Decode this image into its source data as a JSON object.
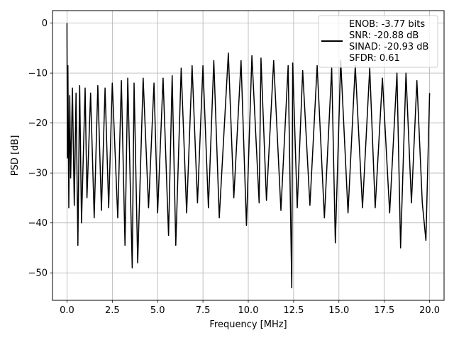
{
  "chart_data": {
    "type": "line",
    "title": "",
    "xlabel": "Frequency [MHz]",
    "ylabel": "PSD [dB]",
    "xlim": [
      -0.8,
      20.8
    ],
    "ylim": [
      -55.5,
      2.5
    ],
    "xticks": [
      0.0,
      2.5,
      5.0,
      7.5,
      10.0,
      12.5,
      15.0,
      17.5,
      20.0
    ],
    "xtick_labels": [
      "0.0",
      "2.5",
      "5.0",
      "7.5",
      "10.0",
      "12.5",
      "15.0",
      "17.5",
      "20.0"
    ],
    "yticks": [
      0,
      -10,
      -20,
      -30,
      -40,
      -50
    ],
    "ytick_labels": [
      "0",
      "−10",
      "−20",
      "−30",
      "−40",
      "−50"
    ],
    "grid": true,
    "legend_position": "top-right",
    "legend": [
      "ENOB: -3.77 bits",
      "SNR: -20.88 dB",
      "SINAD: -20.93 dB",
      "SFDR: 0.61"
    ],
    "series": [
      {
        "color": "#000000",
        "x": [
          0.0,
          0.02,
          0.05,
          0.1,
          0.15,
          0.2,
          0.3,
          0.4,
          0.5,
          0.6,
          0.7,
          0.8,
          1.0,
          1.1,
          1.3,
          1.5,
          1.7,
          1.9,
          2.1,
          2.3,
          2.5,
          2.8,
          3.0,
          3.2,
          3.35,
          3.6,
          3.7,
          3.9,
          4.2,
          4.5,
          4.8,
          5.0,
          5.3,
          5.6,
          5.8,
          6.0,
          6.3,
          6.6,
          6.9,
          7.2,
          7.5,
          7.8,
          8.1,
          8.4,
          8.9,
          9.2,
          9.6,
          9.9,
          10.2,
          10.6,
          10.7,
          11.0,
          11.4,
          11.8,
          12.2,
          12.4,
          12.45,
          12.7,
          13.0,
          13.4,
          13.8,
          14.2,
          14.6,
          14.8,
          15.1,
          15.5,
          15.9,
          16.3,
          16.7,
          17.0,
          17.4,
          17.8,
          18.2,
          18.4,
          18.7,
          19.0,
          19.3,
          19.6,
          19.8,
          20.0
        ],
        "y": [
          0.0,
          -27.0,
          -8.5,
          -37.0,
          -14.5,
          -31.0,
          -13.0,
          -36.5,
          -14.0,
          -44.5,
          -12.5,
          -40.0,
          -13.0,
          -35.0,
          -14.0,
          -39.0,
          -12.5,
          -37.5,
          -13.0,
          -37.0,
          -12.0,
          -39.0,
          -11.5,
          -44.5,
          -11.0,
          -49.0,
          -12.0,
          -48.0,
          -11.0,
          -37.0,
          -12.0,
          -38.0,
          -11.0,
          -42.5,
          -10.5,
          -44.5,
          -9.0,
          -38.0,
          -8.5,
          -36.0,
          -8.5,
          -37.0,
          -7.5,
          -39.0,
          -6.0,
          -35.0,
          -7.5,
          -40.5,
          -6.5,
          -36.0,
          -7.0,
          -35.5,
          -7.5,
          -37.5,
          -8.5,
          -53.0,
          -8.0,
          -37.0,
          -9.5,
          -36.5,
          -8.5,
          -39.0,
          -9.0,
          -44.0,
          -7.5,
          -38.0,
          -8.5,
          -37.0,
          -9.0,
          -37.0,
          -11.0,
          -38.0,
          -10.0,
          -45.0,
          -10.0,
          -36.0,
          -11.5,
          -36.0,
          -43.5,
          -14.0
        ]
      }
    ]
  }
}
